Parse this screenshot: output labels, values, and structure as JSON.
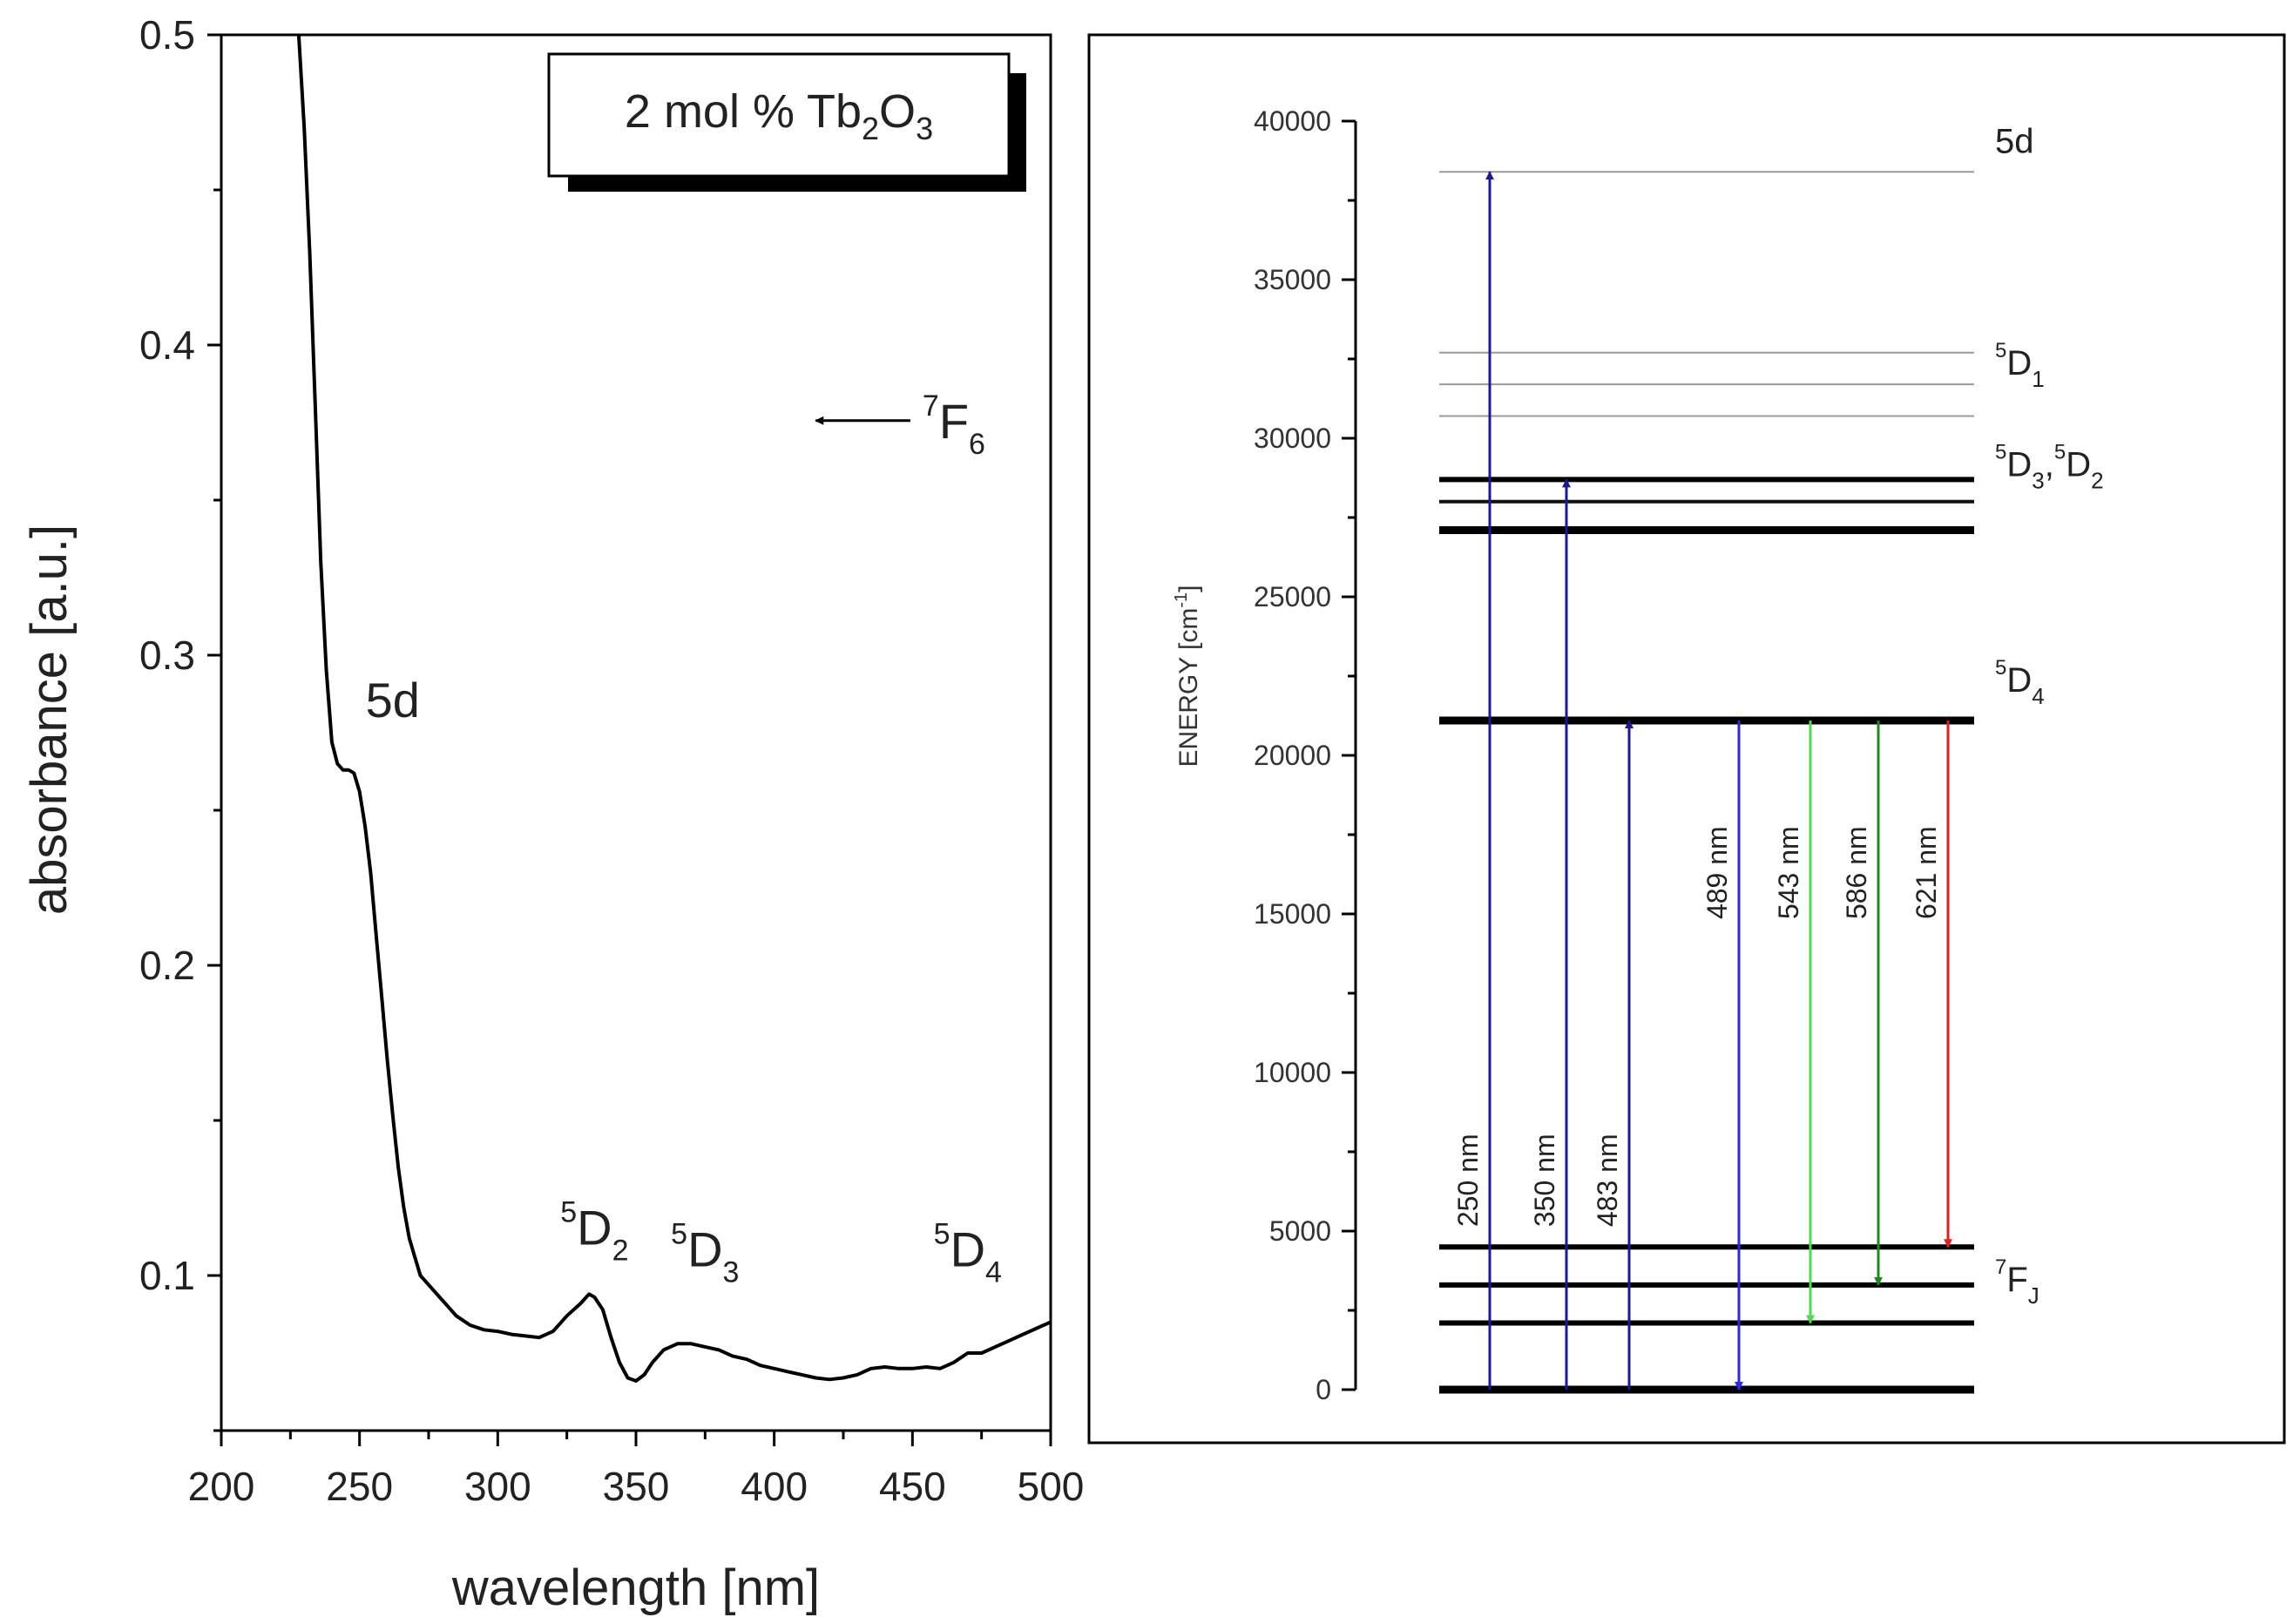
{
  "chart_data": [
    {
      "type": "line",
      "title": "",
      "xlabel": "wavelength [nm]",
      "ylabel": "absorbance [a.u.]",
      "xlim": [
        200,
        500
      ],
      "ylim": [
        0.05,
        0.5
      ],
      "xticks": [
        200,
        250,
        300,
        350,
        400,
        450,
        500
      ],
      "xtick_labels": [
        "200",
        "250",
        "300",
        "350",
        "400",
        "450",
        "500"
      ],
      "yticks": [
        0.1,
        0.2,
        0.3,
        0.4,
        0.5
      ],
      "ytick_labels": [
        "0.1",
        "0.2",
        "0.3",
        "0.4",
        "0.5"
      ],
      "legend": {
        "main": "2 mol % Tb",
        "sub1": "2",
        "mid": "O",
        "sub2": "3"
      },
      "series": [
        {
          "name": "absorbance",
          "color": "#000000",
          "x": [
            228,
            230,
            232,
            234,
            236,
            238,
            240,
            242,
            244,
            246,
            248,
            250,
            252,
            254,
            256,
            258,
            260,
            262,
            264,
            266,
            268,
            270,
            272,
            275,
            280,
            285,
            290,
            295,
            300,
            305,
            310,
            315,
            320,
            325,
            330,
            333,
            335,
            338,
            341,
            344,
            347,
            350,
            353,
            356,
            360,
            365,
            370,
            375,
            380,
            385,
            390,
            395,
            400,
            405,
            410,
            415,
            420,
            425,
            430,
            435,
            440,
            445,
            450,
            455,
            460,
            465,
            470,
            475,
            480,
            485,
            490,
            495,
            500
          ],
          "y": [
            0.5,
            0.47,
            0.43,
            0.38,
            0.33,
            0.295,
            0.272,
            0.265,
            0.263,
            0.263,
            0.262,
            0.256,
            0.245,
            0.23,
            0.21,
            0.19,
            0.17,
            0.152,
            0.135,
            0.122,
            0.112,
            0.106,
            0.1,
            0.097,
            0.092,
            0.087,
            0.084,
            0.0825,
            0.082,
            0.081,
            0.0805,
            0.08,
            0.082,
            0.087,
            0.091,
            0.094,
            0.093,
            0.089,
            0.08,
            0.072,
            0.067,
            0.066,
            0.068,
            0.072,
            0.076,
            0.078,
            0.078,
            0.077,
            0.076,
            0.074,
            0.073,
            0.071,
            0.07,
            0.069,
            0.068,
            0.067,
            0.0665,
            0.067,
            0.068,
            0.07,
            0.0705,
            0.07,
            0.07,
            0.0705,
            0.07,
            0.072,
            0.075,
            0.075,
            0.077,
            0.079,
            0.081,
            0.083,
            0.085
          ]
        }
      ],
      "annotations": [
        {
          "name": "5d",
          "sup": "",
          "main": "5d",
          "sub": "",
          "x": 262,
          "y": 0.28
        },
        {
          "name": "5D2",
          "sup": "5",
          "main": "D",
          "sub": "2",
          "x": 335,
          "y": 0.11
        },
        {
          "name": "5D3",
          "sup": "5",
          "main": "D",
          "sub": "3",
          "x": 375,
          "y": 0.103
        },
        {
          "name": "5D4",
          "sup": "5",
          "main": "D",
          "sub": "4",
          "x": 470,
          "y": 0.103
        },
        {
          "name": "7F6",
          "sup": "7",
          "main": "F",
          "sub": "6",
          "x": 465,
          "y": 0.37,
          "arrow_to_x": 415
        }
      ]
    },
    {
      "type": "energy-level-diagram",
      "title": "",
      "xlabel": "",
      "ylabel": "ENERGY [cm",
      "ylabel_sup": "-1",
      "ylabel_end": "]",
      "ylim": [
        0,
        40000
      ],
      "yticks": [
        0,
        5000,
        10000,
        15000,
        20000,
        25000,
        30000,
        35000,
        40000
      ],
      "ytick_labels": [
        "0",
        "5000",
        "10000",
        "15000",
        "20000",
        "25000",
        "30000",
        "35000",
        "40000"
      ],
      "levels": [
        {
          "energy": 38400,
          "weight": "thin",
          "group": "5d"
        },
        {
          "energy": 32700,
          "weight": "thin",
          "group": "5D1"
        },
        {
          "energy": 31700,
          "weight": "thin",
          "group": "5D1"
        },
        {
          "energy": 30700,
          "weight": "thin",
          "group": "5D1"
        },
        {
          "energy": 28700,
          "weight": "bold",
          "group": "5D3,5D2"
        },
        {
          "energy": 28000,
          "weight": "medium",
          "group": "5D3,5D2"
        },
        {
          "energy": 27100,
          "weight": "heavy",
          "group": "5D3,5D2"
        },
        {
          "energy": 21100,
          "weight": "heavy",
          "group": "5D4"
        },
        {
          "energy": 4500,
          "weight": "bold",
          "group": "7FJ"
        },
        {
          "energy": 3300,
          "weight": "bold",
          "group": "7FJ"
        },
        {
          "energy": 2100,
          "weight": "bold",
          "group": "7FJ"
        },
        {
          "energy": 0,
          "weight": "heavy",
          "group": "7FJ"
        }
      ],
      "level_labels": [
        {
          "name": "5d",
          "sup": "",
          "main": "5d",
          "sub": "",
          "energy": 39000
        },
        {
          "name": "5D1",
          "sup": "5",
          "main": "D",
          "sub": "1",
          "energy": 32000
        },
        {
          "name": "5D3-5D2",
          "sup": "5",
          "main": "D",
          "sub": "3",
          "sep": ",",
          "sup2": "5",
          "main2": "D",
          "sub2": "2",
          "energy": 28800
        },
        {
          "name": "5D4",
          "sup": "5",
          "main": "D",
          "sub": "4",
          "energy": 22000
        },
        {
          "name": "7FJ",
          "sup": "7",
          "main": "F",
          "sub": "J",
          "energy": 3100
        }
      ],
      "transitions": [
        {
          "label": "250 nm",
          "from": 0,
          "to": 38400,
          "direction": "up",
          "color": "#1a1a99"
        },
        {
          "label": "350 nm",
          "from": 0,
          "to": 28700,
          "direction": "up",
          "color": "#1a1a99"
        },
        {
          "label": "483 nm",
          "from": 0,
          "to": 21100,
          "direction": "up",
          "color": "#1a1a99"
        },
        {
          "label": "489 nm",
          "from": 21100,
          "to": 0,
          "direction": "down",
          "color": "#2a2ae0"
        },
        {
          "label": "543 nm",
          "from": 21100,
          "to": 2100,
          "direction": "down",
          "color": "#4ddc4d"
        },
        {
          "label": "586 nm",
          "from": 21100,
          "to": 3300,
          "direction": "down",
          "color": "#1c8a1c"
        },
        {
          "label": "621 nm",
          "from": 21100,
          "to": 4500,
          "direction": "down",
          "color": "#e02020"
        }
      ]
    }
  ]
}
